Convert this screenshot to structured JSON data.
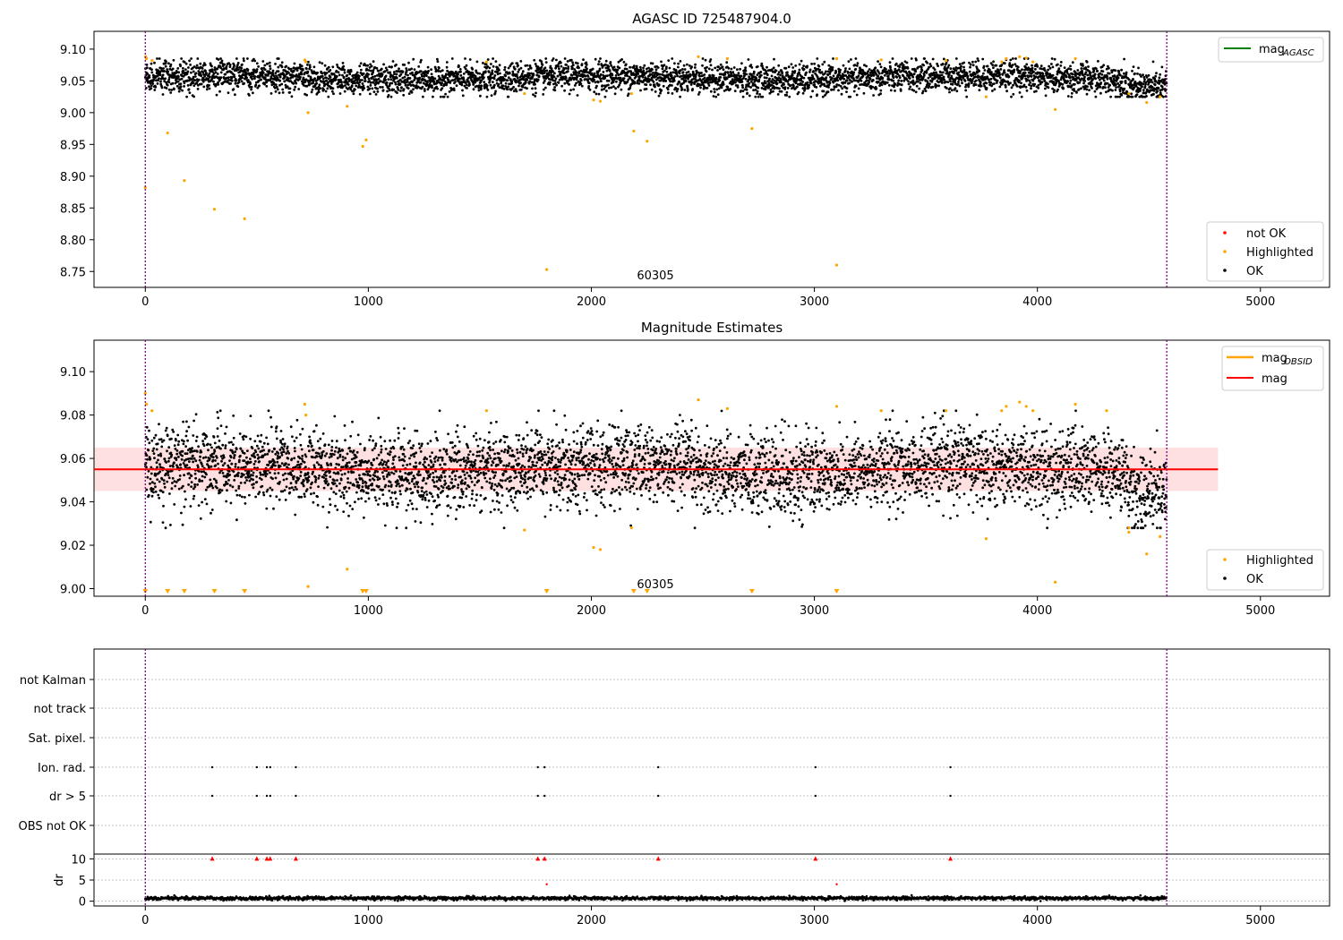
{
  "figure": {
    "title_top": "AGASC ID 725487904.0",
    "title_mid": "Magnitude Estimates",
    "obsid_label": "60305"
  },
  "colors": {
    "ok": "#000000",
    "highlighted": "#ffa500",
    "not_ok": "#ff0000",
    "agasc_line": "#008000",
    "mag_line": "#ff0000",
    "mag_obsid_line": "#ffa500",
    "band": "#ffcccc",
    "vline": "#800080"
  },
  "chart_data": [
    {
      "type": "scatter",
      "title": "AGASC ID 725487904.0",
      "xlim": [
        -230,
        5310
      ],
      "ylim": [
        8.725,
        9.128
      ],
      "xticks": [
        "0",
        "1000",
        "2000",
        "3000",
        "4000",
        "5000"
      ],
      "yticks": [
        "8.75",
        "8.80",
        "8.85",
        "8.90",
        "8.95",
        "9.00",
        "9.05",
        "9.10"
      ],
      "legend_lines": [
        {
          "label": "mag",
          "sub": "AGASC"
        }
      ],
      "legend_points": [
        "not OK",
        "Highlighted",
        "OK"
      ],
      "observation_bounds": [
        0,
        4580
      ],
      "ok_series": {
        "name": "OK",
        "n": 4580,
        "baseline": 9.055,
        "spread": 0.012
      },
      "highlighted": [
        [
          0,
          8.882
        ],
        [
          2,
          9.088
        ],
        [
          5,
          9.085
        ],
        [
          30,
          9.082
        ],
        [
          100,
          8.968
        ],
        [
          175,
          8.893
        ],
        [
          310,
          8.848
        ],
        [
          445,
          8.833
        ],
        [
          715,
          9.083
        ],
        [
          720,
          9.08
        ],
        [
          730,
          9.0
        ],
        [
          905,
          9.01
        ],
        [
          975,
          8.947
        ],
        [
          990,
          8.957
        ],
        [
          1530,
          9.08
        ],
        [
          1700,
          9.03
        ],
        [
          1800,
          8.753
        ],
        [
          2010,
          9.02
        ],
        [
          2040,
          9.018
        ],
        [
          2180,
          9.03
        ],
        [
          2190,
          8.971
        ],
        [
          2250,
          8.955
        ],
        [
          2480,
          9.088
        ],
        [
          2610,
          9.085
        ],
        [
          2720,
          8.975
        ],
        [
          3100,
          8.76
        ],
        [
          3100,
          9.085
        ],
        [
          3300,
          9.083
        ],
        [
          3590,
          9.082
        ],
        [
          3770,
          9.025
        ],
        [
          3840,
          9.08
        ],
        [
          3860,
          9.085
        ],
        [
          3920,
          9.088
        ],
        [
          3950,
          9.086
        ],
        [
          3980,
          9.08
        ],
        [
          4080,
          9.005
        ],
        [
          4170,
          9.085
        ],
        [
          4410,
          9.03
        ],
        [
          4490,
          9.016
        ],
        [
          4550,
          9.025
        ]
      ]
    },
    {
      "type": "scatter",
      "title": "Magnitude Estimates",
      "xlim": [
        -230,
        5310
      ],
      "ylim": [
        8.9965,
        9.1145
      ],
      "xticks": [
        "0",
        "1000",
        "2000",
        "3000",
        "4000",
        "5000"
      ],
      "yticks": [
        "9.00",
        "9.02",
        "9.04",
        "9.06",
        "9.08",
        "9.10"
      ],
      "legend_lines": [
        {
          "label": "mag",
          "sub": "OBSID"
        },
        {
          "label": "mag",
          "sub": ""
        }
      ],
      "legend_points": [
        "Highlighted",
        "OK"
      ],
      "mag": 9.055,
      "band": [
        9.045,
        9.065
      ],
      "band_x": [
        -230,
        4810
      ],
      "ok_series": {
        "name": "OK",
        "n": 4580,
        "baseline": 9.055,
        "spread": 0.009
      },
      "highlighted": [
        [
          0,
          9.09
        ],
        [
          5,
          9.085
        ],
        [
          30,
          9.082
        ],
        [
          715,
          9.085
        ],
        [
          720,
          9.08
        ],
        [
          730,
          9.001
        ],
        [
          905,
          9.009
        ],
        [
          1530,
          9.082
        ],
        [
          1700,
          9.027
        ],
        [
          2010,
          9.019
        ],
        [
          2040,
          9.018
        ],
        [
          2180,
          9.028
        ],
        [
          2480,
          9.087
        ],
        [
          2610,
          9.083
        ],
        [
          3100,
          9.084
        ],
        [
          3300,
          9.082
        ],
        [
          3590,
          9.082
        ],
        [
          3770,
          9.023
        ],
        [
          3840,
          9.082
        ],
        [
          3860,
          9.084
        ],
        [
          3920,
          9.086
        ],
        [
          3950,
          9.084
        ],
        [
          3980,
          9.082
        ],
        [
          4080,
          9.003
        ],
        [
          4170,
          9.085
        ],
        [
          4310,
          9.082
        ],
        [
          4410,
          9.026
        ],
        [
          4410,
          9.028
        ],
        [
          4490,
          9.016
        ],
        [
          4550,
          9.024
        ]
      ],
      "below_range_markers": [
        0,
        100,
        175,
        310,
        445,
        975,
        990,
        1800,
        2190,
        2250,
        2720,
        3100
      ]
    },
    {
      "type": "scatter",
      "title": "",
      "xlim": [
        -230,
        5310
      ],
      "xticks": [
        "0",
        "1000",
        "2000",
        "3000",
        "4000",
        "5000"
      ],
      "flag_rows": [
        "not Kalman",
        "not track",
        "Sat. pixel.",
        "Ion. rad.",
        "dr > 5",
        "OBS not OK"
      ],
      "flag_points": {
        "Ion. rad.": [
          300,
          500,
          545,
          560,
          675,
          1760,
          1790,
          2300,
          3005,
          3610
        ],
        "dr > 5": [
          300,
          500,
          545,
          560,
          675,
          1760,
          1790,
          2300,
          3005,
          3610
        ]
      },
      "dr_ylabel": "dr",
      "dr_yticks": [
        "0",
        "5",
        "10"
      ],
      "dr_ylim": [
        -0.5,
        10.5
      ],
      "dr_capped": [
        300,
        500,
        545,
        560,
        675,
        1760,
        1790,
        2300,
        3005,
        3610
      ],
      "dr_red_points": [
        [
          1800,
          4.0
        ],
        [
          3100,
          4.0
        ]
      ],
      "dr_ok_series": {
        "name": "OK",
        "n": 4580,
        "baseline": 0.7,
        "spread": 0.2
      }
    }
  ]
}
